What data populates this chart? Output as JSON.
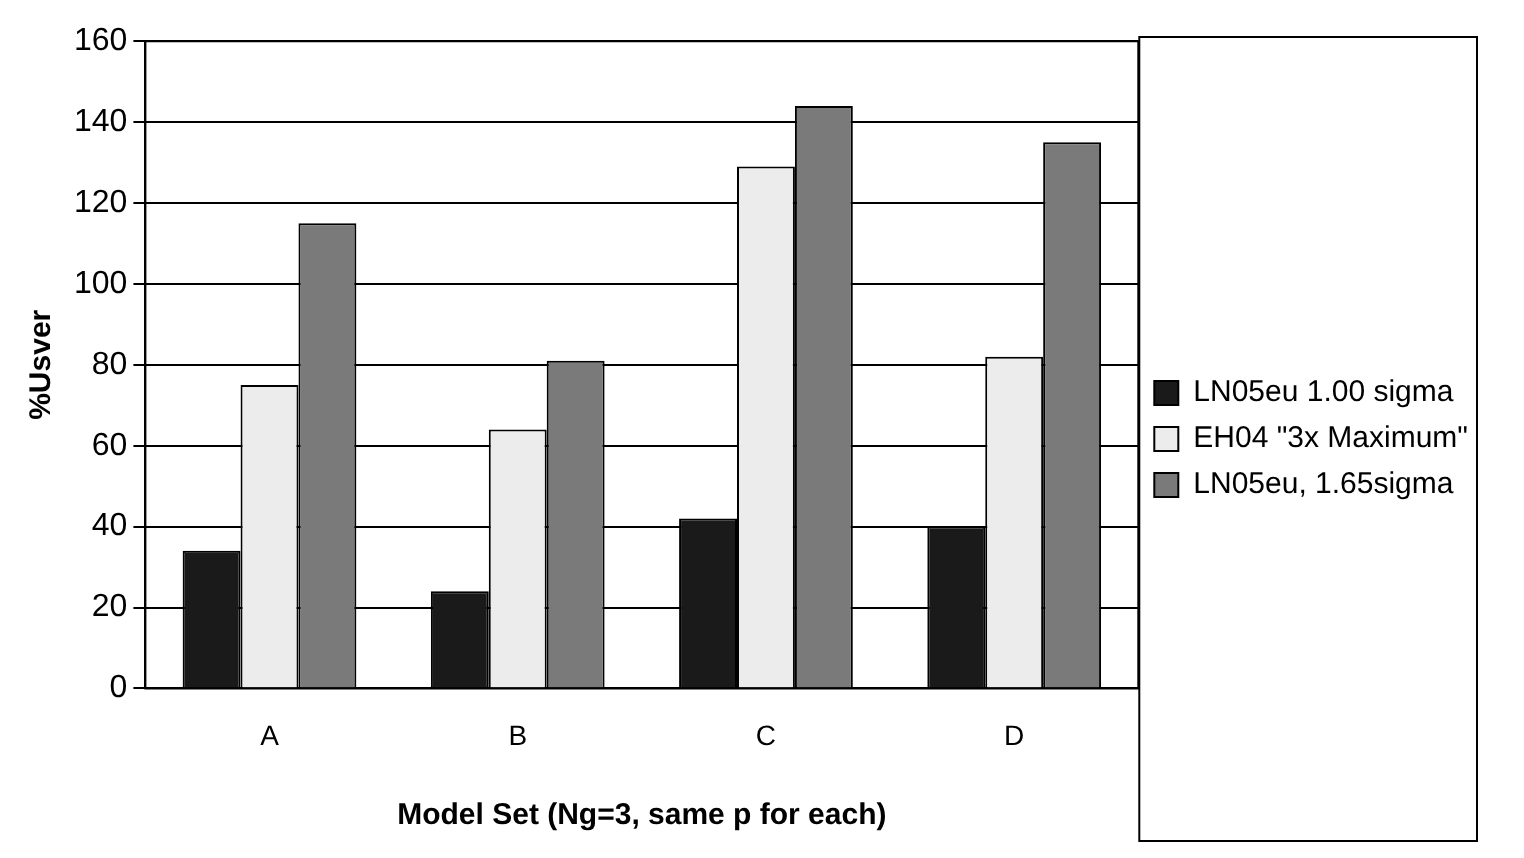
{
  "chart_data": {
    "type": "bar",
    "xlabel": "Model Set (Ng=3, same p for each)",
    "ylabel": "%Usver",
    "categories": [
      "A",
      "B",
      "C",
      "D"
    ],
    "series": [
      {
        "name": "LN05eu 1.00 sigma",
        "color": "#1a1a1a",
        "values": [
          34,
          24,
          42,
          40
        ]
      },
      {
        "name": "EH04 \"3x Maximum\"",
        "color": "#ececec",
        "values": [
          75,
          64,
          129,
          82
        ]
      },
      {
        "name": "LN05eu, 1.65sigma",
        "color": "#7a7a7a",
        "values": [
          115,
          81,
          144,
          135
        ]
      }
    ],
    "ylim": [
      0,
      160
    ],
    "yticks": [
      0,
      20,
      40,
      60,
      80,
      100,
      120,
      140,
      160
    ],
    "grid": "y",
    "legend": "right"
  }
}
